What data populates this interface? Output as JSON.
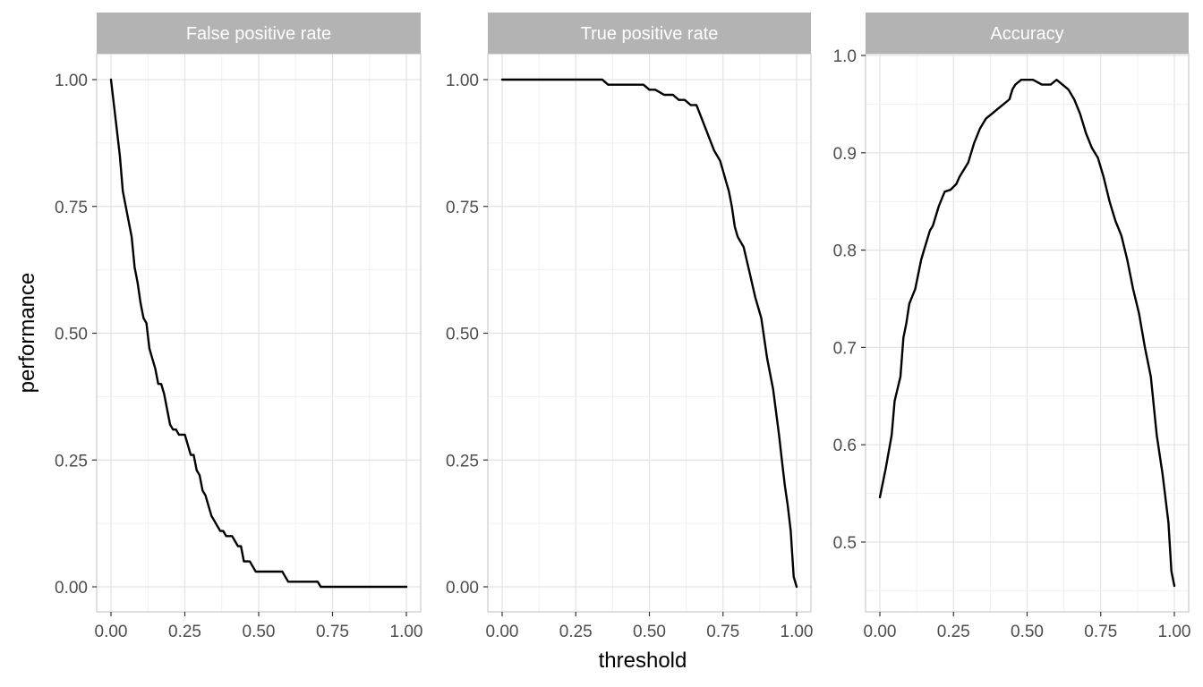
{
  "chart_data": {
    "type": "line",
    "xlabel": "threshold",
    "ylabel": "performance",
    "grid": true,
    "line_color": "#000000",
    "strip_color": "#b3b3b3",
    "panels": [
      {
        "title": "False positive rate",
        "xlim": [
          0,
          1
        ],
        "ylim": [
          0,
          1.05
        ],
        "x_ticks": [
          "0.00",
          "0.25",
          "0.50",
          "0.75",
          "1.00"
        ],
        "y_ticks": [
          "0.00",
          "0.25",
          "0.50",
          "0.75",
          "1.00"
        ],
        "x": [
          0.0,
          0.01,
          0.02,
          0.03,
          0.04,
          0.05,
          0.06,
          0.07,
          0.08,
          0.09,
          0.1,
          0.11,
          0.12,
          0.13,
          0.14,
          0.15,
          0.16,
          0.17,
          0.18,
          0.19,
          0.2,
          0.21,
          0.22,
          0.23,
          0.24,
          0.25,
          0.26,
          0.27,
          0.28,
          0.29,
          0.3,
          0.31,
          0.32,
          0.33,
          0.34,
          0.35,
          0.36,
          0.37,
          0.38,
          0.39,
          0.4,
          0.41,
          0.42,
          0.43,
          0.44,
          0.45,
          0.46,
          0.47,
          0.48,
          0.49,
          0.5,
          0.55,
          0.58,
          0.59,
          0.6,
          0.65,
          0.7,
          0.71,
          0.75,
          0.8,
          0.9,
          1.0
        ],
        "y": [
          1.0,
          0.95,
          0.9,
          0.85,
          0.78,
          0.75,
          0.72,
          0.69,
          0.63,
          0.6,
          0.56,
          0.53,
          0.52,
          0.47,
          0.45,
          0.43,
          0.4,
          0.4,
          0.38,
          0.35,
          0.32,
          0.31,
          0.31,
          0.3,
          0.3,
          0.3,
          0.28,
          0.26,
          0.26,
          0.23,
          0.22,
          0.19,
          0.18,
          0.16,
          0.14,
          0.13,
          0.12,
          0.11,
          0.11,
          0.1,
          0.1,
          0.1,
          0.09,
          0.08,
          0.08,
          0.05,
          0.05,
          0.05,
          0.04,
          0.03,
          0.03,
          0.03,
          0.03,
          0.02,
          0.01,
          0.01,
          0.01,
          0.0,
          0.0,
          0.0,
          0.0,
          0.0
        ]
      },
      {
        "title": "True positive rate",
        "xlim": [
          0,
          1
        ],
        "ylim": [
          0,
          1.05
        ],
        "x_ticks": [
          "0.00",
          "0.25",
          "0.50",
          "0.75",
          "1.00"
        ],
        "y_ticks": [
          "0.00",
          "0.25",
          "0.50",
          "0.75",
          "1.00"
        ],
        "x": [
          0.0,
          0.05,
          0.1,
          0.15,
          0.2,
          0.25,
          0.3,
          0.34,
          0.36,
          0.4,
          0.45,
          0.48,
          0.5,
          0.52,
          0.55,
          0.58,
          0.6,
          0.62,
          0.64,
          0.66,
          0.68,
          0.7,
          0.72,
          0.74,
          0.75,
          0.76,
          0.77,
          0.78,
          0.79,
          0.8,
          0.82,
          0.84,
          0.86,
          0.88,
          0.9,
          0.92,
          0.94,
          0.95,
          0.96,
          0.97,
          0.98,
          0.99,
          1.0
        ],
        "y": [
          1.0,
          1.0,
          1.0,
          1.0,
          1.0,
          1.0,
          1.0,
          1.0,
          0.99,
          0.99,
          0.99,
          0.99,
          0.98,
          0.98,
          0.97,
          0.97,
          0.96,
          0.96,
          0.95,
          0.95,
          0.92,
          0.89,
          0.86,
          0.84,
          0.82,
          0.8,
          0.78,
          0.75,
          0.71,
          0.69,
          0.67,
          0.62,
          0.57,
          0.53,
          0.45,
          0.39,
          0.3,
          0.25,
          0.2,
          0.16,
          0.11,
          0.02,
          0.0
        ]
      },
      {
        "title": "Accuracy",
        "xlim": [
          0,
          1
        ],
        "ylim": [
          0.44,
          1.0
        ],
        "x_ticks": [
          "0.00",
          "0.25",
          "0.50",
          "0.75",
          "1.00"
        ],
        "y_ticks": [
          "0.5",
          "0.6",
          "0.7",
          "0.8",
          "0.9",
          "1.0"
        ],
        "x": [
          0.0,
          0.02,
          0.04,
          0.05,
          0.07,
          0.08,
          0.09,
          0.1,
          0.12,
          0.14,
          0.15,
          0.17,
          0.18,
          0.2,
          0.22,
          0.24,
          0.26,
          0.27,
          0.3,
          0.32,
          0.34,
          0.36,
          0.38,
          0.4,
          0.42,
          0.44,
          0.45,
          0.46,
          0.48,
          0.5,
          0.52,
          0.55,
          0.58,
          0.6,
          0.62,
          0.64,
          0.66,
          0.68,
          0.7,
          0.72,
          0.74,
          0.76,
          0.78,
          0.8,
          0.82,
          0.84,
          0.86,
          0.88,
          0.9,
          0.92,
          0.94,
          0.96,
          0.98,
          0.99,
          1.0
        ],
        "y": [
          0.546,
          0.576,
          0.61,
          0.645,
          0.67,
          0.71,
          0.725,
          0.745,
          0.76,
          0.79,
          0.8,
          0.82,
          0.825,
          0.845,
          0.86,
          0.862,
          0.868,
          0.875,
          0.89,
          0.91,
          0.925,
          0.935,
          0.94,
          0.945,
          0.95,
          0.955,
          0.965,
          0.97,
          0.975,
          0.975,
          0.975,
          0.97,
          0.97,
          0.975,
          0.97,
          0.965,
          0.955,
          0.94,
          0.92,
          0.905,
          0.895,
          0.875,
          0.85,
          0.83,
          0.815,
          0.79,
          0.76,
          0.735,
          0.7,
          0.67,
          0.61,
          0.57,
          0.52,
          0.47,
          0.455
        ]
      }
    ]
  }
}
